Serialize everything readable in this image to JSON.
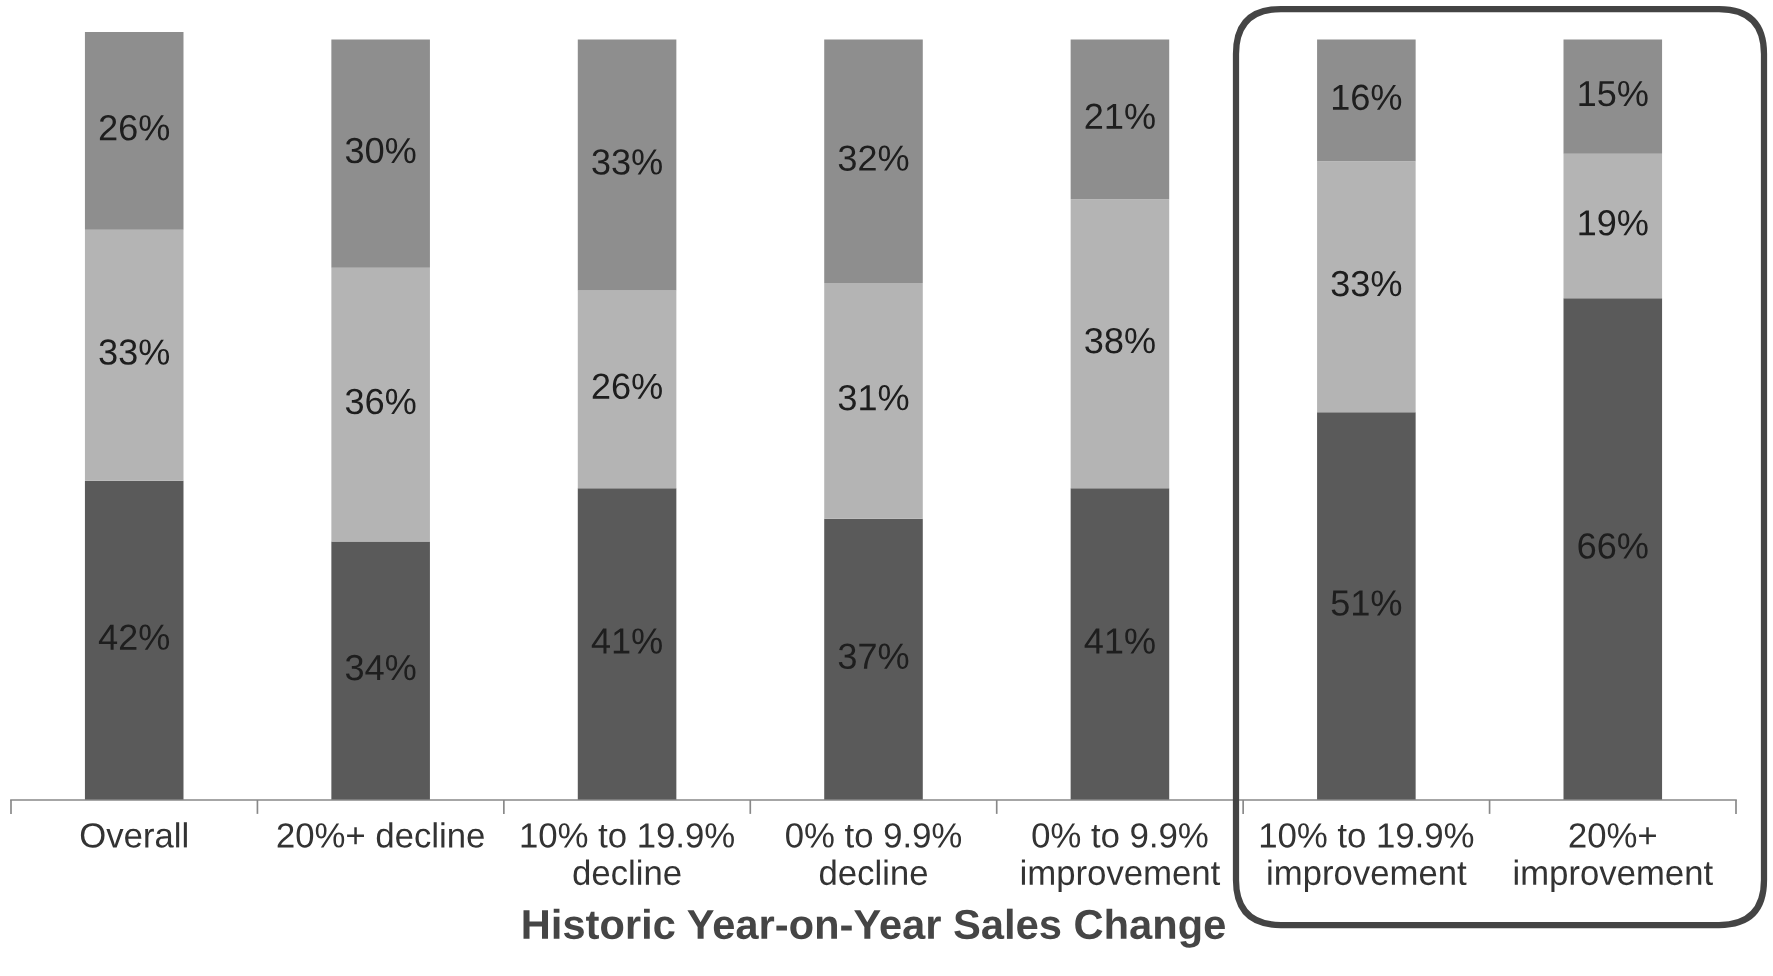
{
  "chart_data": {
    "type": "bar",
    "stacked": true,
    "xlabel": "Historic Year-on-Year Sales Change",
    "categories": [
      "Overall",
      "20%+ decline",
      "10% to 19.9%\ndecline",
      "0% to 9.9%\ndecline",
      "0% to 9.9%\nimprovement",
      "10% to 19.9%\nimprovement",
      "20%+\nimprovement"
    ],
    "series": [
      {
        "color": "#5a5a5a",
        "values": [
          42,
          34,
          41,
          37,
          41,
          51,
          66
        ],
        "value_labels": [
          "42%",
          "34%",
          "41%",
          "37%",
          "41%",
          "51%",
          "66%"
        ]
      },
      {
        "color": "#b4b4b4",
        "values": [
          33,
          36,
          26,
          31,
          38,
          33,
          19
        ],
        "value_labels": [
          "33%",
          "36%",
          "26%",
          "31%",
          "38%",
          "33%",
          "19%"
        ]
      },
      {
        "color": "#8e8e8e",
        "values": [
          26,
          30,
          33,
          32,
          21,
          16,
          15
        ],
        "value_labels": [
          "26%",
          "30%",
          "33%",
          "32%",
          "21%",
          "16%",
          "15%"
        ]
      }
    ],
    "tick_labels": "x"
  }
}
